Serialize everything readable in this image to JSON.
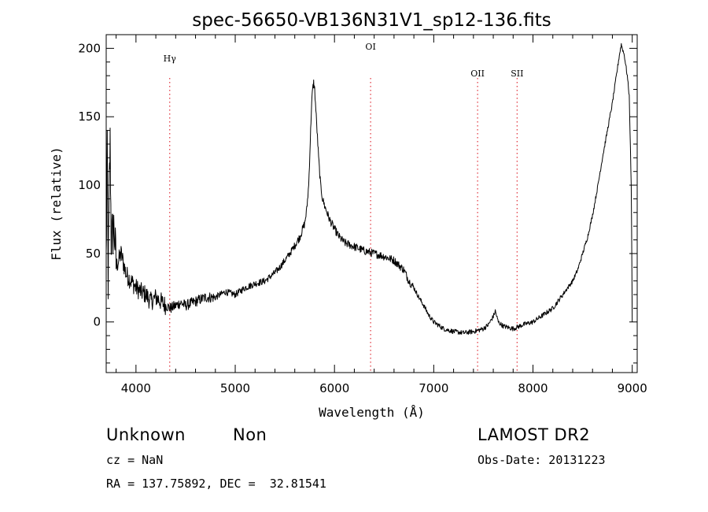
{
  "chart_data": {
    "type": "line",
    "title": "spec-56650-VB136N31V1_sp12-136.fits",
    "xlabel": "Wavelength (Å)",
    "ylabel": "Flux (relative)",
    "xlim": [
      3700,
      9050
    ],
    "ylim": [
      -37,
      210
    ],
    "xticks": [
      4000,
      5000,
      6000,
      7000,
      8000,
      9000
    ],
    "yticks": [
      0,
      50,
      100,
      150,
      200
    ],
    "grid": false,
    "line_color": "#000000",
    "marker_color": "#e0303a",
    "lines": [
      {
        "label": "Hγ",
        "wavelength": 4340
      },
      {
        "label": "OI",
        "wavelength": 6364
      },
      {
        "label": "OII",
        "wavelength": 7442
      },
      {
        "label": "SII",
        "wavelength": 7840
      }
    ],
    "series": [
      {
        "x": [
          3700,
          3710,
          3720,
          3730,
          3740,
          3750,
          3780,
          3800,
          3850,
          3900,
          3950,
          4000,
          4050,
          4100,
          4150,
          4200,
          4250,
          4300,
          4350,
          4400,
          4450,
          4500,
          4600,
          4700,
          4800,
          4900,
          5000,
          5100,
          5200,
          5300,
          5400,
          5450,
          5500,
          5550,
          5600,
          5650,
          5700,
          5720,
          5740,
          5760,
          5770,
          5780,
          5790,
          5800,
          5820,
          5840,
          5860,
          5880,
          5900,
          5950,
          6000,
          6050,
          6100,
          6200,
          6300,
          6400,
          6500,
          6600,
          6700,
          6750,
          6800,
          6850,
          6900,
          6950,
          7000,
          7100,
          7200,
          7300,
          7400,
          7500,
          7550,
          7600,
          7620,
          7650,
          7700,
          7800,
          7900,
          8000,
          8100,
          8200,
          8300,
          8400,
          8450,
          8500,
          8550,
          8600,
          8650,
          8700,
          8750,
          8800,
          8850,
          8870,
          8890,
          8900,
          8920,
          8950,
          8970,
          8990,
          9000
        ],
        "y": [
          45,
          120,
          30,
          95,
          130,
          60,
          70,
          40,
          50,
          35,
          30,
          25,
          22,
          20,
          15,
          18,
          15,
          12,
          10,
          12,
          14,
          12,
          15,
          18,
          18,
          22,
          20,
          25,
          28,
          30,
          36,
          40,
          45,
          50,
          56,
          62,
          72,
          82,
          100,
          140,
          160,
          170,
          175,
          170,
          145,
          120,
          100,
          90,
          85,
          75,
          68,
          62,
          58,
          55,
          52,
          50,
          48,
          45,
          38,
          30,
          25,
          18,
          12,
          5,
          0,
          -5,
          -7,
          -8,
          -7,
          -5,
          -2,
          4,
          8,
          0,
          -3,
          -5,
          -2,
          0,
          5,
          10,
          20,
          30,
          38,
          50,
          62,
          78,
          98,
          120,
          140,
          160,
          185,
          195,
          203,
          200,
          195,
          180,
          165,
          100,
          0
        ]
      }
    ]
  },
  "info": {
    "class": "Unknown",
    "subclass": "Non",
    "cz": "cz = NaN",
    "coords": "RA = 137.75892, DEC =  32.81541",
    "survey": "LAMOST DR2",
    "obs_date": "Obs-Date: 20131223"
  }
}
